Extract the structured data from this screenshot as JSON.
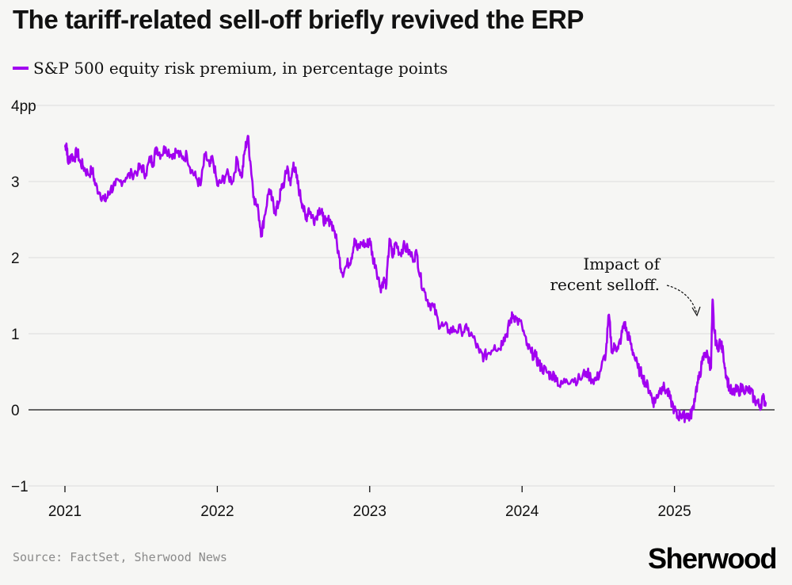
{
  "header": {
    "title": "The tariff-related sell-off briefly revived the ERP"
  },
  "legend": {
    "label": "S&P 500 equity risk premium, in percentage points"
  },
  "footer": {
    "source": "Source: FactSet, Sherwood News",
    "brand": "Sherwood"
  },
  "colors": {
    "series": "#a100f0",
    "grid": "#dcdcdc",
    "zero_line": "#111111",
    "background": "#f6f6f4"
  },
  "chart_data": {
    "type": "line",
    "title": "The tariff-related sell-off briefly revived the ERP",
    "xlabel": "",
    "ylabel": "",
    "xlim": [
      2021.0,
      2025.75
    ],
    "ylim": [
      -1,
      4
    ],
    "y_ticks": [
      {
        "value": 4,
        "label": "4pp"
      },
      {
        "value": 3,
        "label": "3"
      },
      {
        "value": 2,
        "label": "2"
      },
      {
        "value": 1,
        "label": "1"
      },
      {
        "value": 0,
        "label": "0"
      },
      {
        "value": -1,
        "label": "−1"
      }
    ],
    "x_ticks": [
      {
        "value": 2021,
        "label": "2021"
      },
      {
        "value": 2022,
        "label": "2022"
      },
      {
        "value": 2023,
        "label": "2023"
      },
      {
        "value": 2024,
        "label": "2024"
      },
      {
        "value": 2025,
        "label": "2025"
      }
    ],
    "grid": true,
    "annotation": {
      "lines": [
        "Impact of",
        "recent selloff."
      ],
      "points_to": {
        "x": 2025.2,
        "y": 1.2
      }
    },
    "series": [
      {
        "name": "S&P 500 equity risk premium, in percentage points",
        "points": [
          [
            2021.0,
            3.45
          ],
          [
            2021.01,
            3.5
          ],
          [
            2021.02,
            3.25
          ],
          [
            2021.04,
            3.35
          ],
          [
            2021.06,
            3.3
          ],
          [
            2021.08,
            3.4
          ],
          [
            2021.1,
            3.25
          ],
          [
            2021.12,
            3.2
          ],
          [
            2021.15,
            3.1
          ],
          [
            2021.18,
            3.15
          ],
          [
            2021.2,
            2.95
          ],
          [
            2021.23,
            2.85
          ],
          [
            2021.26,
            2.75
          ],
          [
            2021.28,
            2.8
          ],
          [
            2021.3,
            2.9
          ],
          [
            2021.33,
            2.95
          ],
          [
            2021.36,
            3.0
          ],
          [
            2021.4,
            3.05
          ],
          [
            2021.44,
            3.1
          ],
          [
            2021.48,
            3.15
          ],
          [
            2021.5,
            3.2
          ],
          [
            2021.53,
            3.1
          ],
          [
            2021.56,
            3.3
          ],
          [
            2021.58,
            3.25
          ],
          [
            2021.6,
            3.45
          ],
          [
            2021.63,
            3.35
          ],
          [
            2021.66,
            3.45
          ],
          [
            2021.7,
            3.35
          ],
          [
            2021.73,
            3.4
          ],
          [
            2021.77,
            3.3
          ],
          [
            2021.8,
            3.35
          ],
          [
            2021.83,
            3.15
          ],
          [
            2021.86,
            3.05
          ],
          [
            2021.89,
            2.95
          ],
          [
            2021.92,
            3.35
          ],
          [
            2021.95,
            3.2
          ],
          [
            2021.97,
            3.3
          ],
          [
            2022.0,
            2.95
          ],
          [
            2022.03,
            3.0
          ],
          [
            2022.06,
            3.1
          ],
          [
            2022.1,
            3.0
          ],
          [
            2022.13,
            3.3
          ],
          [
            2022.16,
            3.05
          ],
          [
            2022.18,
            3.4
          ],
          [
            2022.2,
            3.6
          ],
          [
            2022.22,
            3.2
          ],
          [
            2022.24,
            2.8
          ],
          [
            2022.27,
            2.6
          ],
          [
            2022.29,
            2.3
          ],
          [
            2022.31,
            2.55
          ],
          [
            2022.34,
            2.9
          ],
          [
            2022.36,
            2.75
          ],
          [
            2022.38,
            2.6
          ],
          [
            2022.4,
            2.7
          ],
          [
            2022.42,
            2.9
          ],
          [
            2022.44,
            3.0
          ],
          [
            2022.46,
            3.2
          ],
          [
            2022.48,
            2.95
          ],
          [
            2022.5,
            3.25
          ],
          [
            2022.52,
            3.05
          ],
          [
            2022.54,
            2.85
          ],
          [
            2022.56,
            2.7
          ],
          [
            2022.58,
            2.5
          ],
          [
            2022.6,
            2.65
          ],
          [
            2022.62,
            2.55
          ],
          [
            2022.64,
            2.5
          ],
          [
            2022.67,
            2.65
          ],
          [
            2022.69,
            2.55
          ],
          [
            2022.71,
            2.45
          ],
          [
            2022.74,
            2.5
          ],
          [
            2022.77,
            2.35
          ],
          [
            2022.8,
            2.0
          ],
          [
            2022.82,
            1.8
          ],
          [
            2022.85,
            1.9
          ],
          [
            2022.88,
            2.0
          ],
          [
            2022.9,
            2.25
          ],
          [
            2022.92,
            2.1
          ],
          [
            2022.95,
            2.2
          ],
          [
            2022.98,
            2.15
          ],
          [
            2023.0,
            2.25
          ],
          [
            2023.02,
            2.0
          ],
          [
            2023.04,
            1.9
          ],
          [
            2023.07,
            1.6
          ],
          [
            2023.09,
            1.7
          ],
          [
            2023.11,
            1.65
          ],
          [
            2023.13,
            2.25
          ],
          [
            2023.15,
            2.0
          ],
          [
            2023.17,
            2.2
          ],
          [
            2023.2,
            2.05
          ],
          [
            2023.22,
            2.15
          ],
          [
            2023.25,
            2.1
          ],
          [
            2023.28,
            2.0
          ],
          [
            2023.31,
            2.05
          ],
          [
            2023.33,
            1.75
          ],
          [
            2023.36,
            1.55
          ],
          [
            2023.39,
            1.4
          ],
          [
            2023.42,
            1.35
          ],
          [
            2023.45,
            1.15
          ],
          [
            2023.48,
            1.1
          ],
          [
            2023.52,
            1.05
          ],
          [
            2023.56,
            1.05
          ],
          [
            2023.6,
            1.05
          ],
          [
            2023.64,
            1.05
          ],
          [
            2023.68,
            0.95
          ],
          [
            2023.72,
            0.75
          ],
          [
            2023.75,
            0.7
          ],
          [
            2023.78,
            0.75
          ],
          [
            2023.82,
            0.85
          ],
          [
            2023.85,
            0.8
          ],
          [
            2023.88,
            0.95
          ],
          [
            2023.9,
            1.0
          ],
          [
            2023.92,
            1.15
          ],
          [
            2023.94,
            1.25
          ],
          [
            2023.96,
            1.2
          ],
          [
            2024.0,
            1.1
          ],
          [
            2024.03,
            0.85
          ],
          [
            2024.06,
            0.75
          ],
          [
            2024.09,
            0.7
          ],
          [
            2024.11,
            0.6
          ],
          [
            2024.13,
            0.55
          ],
          [
            2024.16,
            0.5
          ],
          [
            2024.19,
            0.45
          ],
          [
            2024.22,
            0.45
          ],
          [
            2024.25,
            0.3
          ],
          [
            2024.29,
            0.4
          ],
          [
            2024.33,
            0.4
          ],
          [
            2024.38,
            0.4
          ],
          [
            2024.42,
            0.5
          ],
          [
            2024.46,
            0.4
          ],
          [
            2024.49,
            0.4
          ],
          [
            2024.52,
            0.55
          ],
          [
            2024.55,
            0.75
          ],
          [
            2024.57,
            1.25
          ],
          [
            2024.59,
            0.75
          ],
          [
            2024.61,
            0.85
          ],
          [
            2024.63,
            0.8
          ],
          [
            2024.65,
            0.95
          ],
          [
            2024.67,
            1.15
          ],
          [
            2024.69,
            1.0
          ],
          [
            2024.71,
            0.9
          ],
          [
            2024.73,
            0.75
          ],
          [
            2024.76,
            0.55
          ],
          [
            2024.79,
            0.45
          ],
          [
            2024.81,
            0.35
          ],
          [
            2024.84,
            0.25
          ],
          [
            2024.86,
            0.1
          ],
          [
            2024.88,
            0.15
          ],
          [
            2024.9,
            0.25
          ],
          [
            2024.92,
            0.3
          ],
          [
            2024.95,
            0.25
          ],
          [
            2024.97,
            0.15
          ],
          [
            2025.0,
            0.0
          ],
          [
            2025.02,
            -0.1
          ],
          [
            2025.04,
            -0.05
          ],
          [
            2025.06,
            -0.1
          ],
          [
            2025.08,
            -0.05
          ],
          [
            2025.1,
            -0.1
          ],
          [
            2025.12,
            0.0
          ],
          [
            2025.14,
            0.25
          ],
          [
            2025.16,
            0.4
          ],
          [
            2025.18,
            0.6
          ],
          [
            2025.2,
            0.75
          ],
          [
            2025.22,
            0.7
          ],
          [
            2025.24,
            0.55
          ],
          [
            2025.25,
            1.45
          ],
          [
            2025.26,
            1.05
          ],
          [
            2025.28,
            0.8
          ],
          [
            2025.3,
            0.9
          ],
          [
            2025.32,
            0.75
          ],
          [
            2025.34,
            0.45
          ],
          [
            2025.36,
            0.3
          ],
          [
            2025.38,
            0.2
          ],
          [
            2025.4,
            0.25
          ],
          [
            2025.42,
            0.25
          ],
          [
            2025.45,
            0.3
          ],
          [
            2025.48,
            0.25
          ],
          [
            2025.5,
            0.25
          ],
          [
            2025.52,
            0.15
          ],
          [
            2025.54,
            0.1
          ],
          [
            2025.56,
            0.05
          ],
          [
            2025.58,
            0.15
          ],
          [
            2025.6,
            0.1
          ]
        ]
      }
    ]
  }
}
